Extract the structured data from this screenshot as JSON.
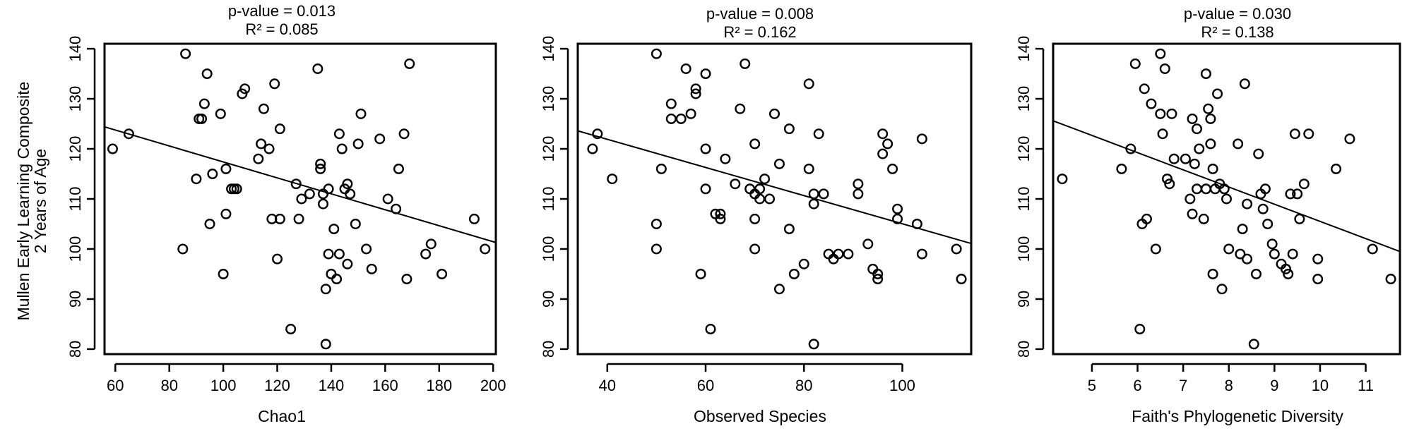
{
  "ylabel_line1": "Mullen Early Learning Composite",
  "ylabel_line2": "2 Years of Age",
  "chart_data": [
    {
      "type": "scatter",
      "title_line1": "p-value = 0.013",
      "title_line2": "R² = 0.085",
      "xlabel": "Chao1",
      "ylabel": "Mullen Early Learning Composite 2 Years of Age",
      "xlim": [
        56,
        201
      ],
      "ylim": [
        79,
        141
      ],
      "xticks": [
        60,
        80,
        100,
        120,
        140,
        160,
        180,
        200
      ],
      "yticks": [
        80,
        90,
        100,
        110,
        120,
        130,
        140
      ],
      "fit": {
        "x": [
          56,
          201
        ],
        "y": [
          124.4,
          101.3
        ]
      },
      "x": [
        59,
        65,
        85,
        86,
        90,
        91,
        92,
        93,
        94,
        95,
        96,
        99,
        100,
        101,
        101,
        103,
        104,
        105,
        107,
        108,
        113,
        114,
        115,
        117,
        118,
        119,
        120,
        121,
        121,
        125,
        127,
        128,
        129,
        132,
        135,
        136,
        136,
        137,
        137,
        138,
        138,
        139,
        139,
        140,
        141,
        142,
        143,
        143,
        144,
        145,
        146,
        146,
        147,
        149,
        150,
        151,
        153,
        155,
        158,
        161,
        164,
        165,
        167,
        168,
        169,
        175,
        177,
        181,
        193,
        197
      ],
      "y": [
        120,
        123,
        100,
        139,
        114,
        126,
        126,
        129,
        135,
        105,
        115,
        127,
        95,
        107,
        116,
        112,
        112,
        112,
        131,
        132,
        118,
        121,
        128,
        120,
        106,
        133,
        98,
        124,
        106,
        84,
        113,
        106,
        110,
        111,
        136,
        117,
        116,
        109,
        111,
        92,
        81,
        112,
        99,
        95,
        104,
        94,
        99,
        123,
        120,
        112,
        113,
        97,
        111,
        105,
        121,
        127,
        100,
        96,
        122,
        110,
        108,
        116,
        123,
        94,
        137,
        99,
        101,
        95,
        106,
        100
      ]
    },
    {
      "type": "scatter",
      "title_line1": "p-value = 0.008",
      "title_line2": "R² = 0.162",
      "xlabel": "Observed Species",
      "ylabel": "Mullen Early Learning Composite 2 Years of Age",
      "xlim": [
        34,
        114
      ],
      "ylim": [
        79,
        141
      ],
      "xticks": [
        40,
        60,
        80,
        100
      ],
      "yticks": [
        80,
        90,
        100,
        110,
        120,
        130,
        140
      ],
      "fit": {
        "x": [
          34,
          114
        ],
        "y": [
          123.6,
          101.1
        ]
      },
      "x": [
        37,
        38,
        41,
        50,
        50,
        50,
        51,
        53,
        53,
        55,
        56,
        57,
        58,
        58,
        59,
        60,
        60,
        60,
        61,
        62,
        63,
        63,
        64,
        66,
        67,
        68,
        69,
        70,
        70,
        70,
        70,
        71,
        71,
        72,
        73,
        74,
        75,
        75,
        77,
        77,
        78,
        80,
        81,
        81,
        82,
        82,
        82,
        83,
        84,
        85,
        86,
        87,
        89,
        91,
        91,
        93,
        94,
        95,
        95,
        96,
        96,
        97,
        98,
        99,
        99,
        103,
        104,
        104,
        111,
        112
      ],
      "y": [
        120,
        123,
        114,
        139,
        105,
        100,
        116,
        129,
        126,
        126,
        136,
        127,
        132,
        131,
        95,
        120,
        135,
        112,
        84,
        107,
        106,
        107,
        118,
        113,
        128,
        137,
        112,
        121,
        106,
        100,
        111,
        112,
        110,
        114,
        110,
        127,
        117,
        92,
        104,
        124,
        95,
        97,
        133,
        116,
        109,
        111,
        81,
        123,
        111,
        99,
        98,
        99,
        99,
        113,
        111,
        101,
        96,
        95,
        94,
        119,
        123,
        121,
        116,
        106,
        108,
        105,
        122,
        99,
        100,
        94
      ]
    },
    {
      "type": "scatter",
      "title_line1": "p-value = 0.030",
      "title_line2": "R² = 0.138",
      "xlabel": "Faith's Phylogenetic Diversity",
      "ylabel": "Mullen Early Learning Composite 2 Years of Age",
      "xlim": [
        4.15,
        11.75
      ],
      "ylim": [
        79,
        141
      ],
      "xticks": [
        5,
        6,
        7,
        8,
        9,
        10,
        11
      ],
      "yticks": [
        80,
        90,
        100,
        110,
        120,
        130,
        140
      ],
      "fit": {
        "x": [
          4.15,
          11.75
        ],
        "y": [
          125.6,
          99.5
        ]
      },
      "x": [
        4.35,
        5.65,
        5.85,
        5.95,
        6.05,
        6.1,
        6.15,
        6.2,
        6.3,
        6.4,
        6.5,
        6.5,
        6.55,
        6.6,
        6.65,
        6.7,
        6.75,
        6.8,
        7.05,
        7.15,
        7.2,
        7.2,
        7.25,
        7.3,
        7.3,
        7.35,
        7.45,
        7.5,
        7.5,
        7.55,
        7.6,
        7.6,
        7.65,
        7.65,
        7.7,
        7.75,
        7.8,
        7.85,
        7.9,
        7.95,
        8.0,
        8.2,
        8.25,
        8.3,
        8.35,
        8.4,
        8.4,
        8.55,
        8.6,
        8.65,
        8.7,
        8.75,
        8.8,
        8.85,
        8.95,
        9.0,
        9.15,
        9.25,
        9.3,
        9.35,
        9.4,
        9.45,
        9.5,
        9.55,
        9.65,
        9.75,
        9.95,
        9.95,
        10.35,
        10.65,
        11.15,
        11.55
      ],
      "y": [
        114,
        116,
        120,
        137,
        84,
        105,
        132,
        106,
        129,
        100,
        139,
        127,
        123,
        136,
        114,
        113,
        127,
        118,
        118,
        110,
        107,
        126,
        117,
        124,
        112,
        120,
        106,
        135,
        112,
        128,
        121,
        126,
        95,
        116,
        112,
        131,
        113,
        92,
        112,
        110,
        100,
        121,
        99,
        104,
        133,
        98,
        109,
        81,
        95,
        119,
        111,
        108,
        112,
        105,
        101,
        99,
        97,
        96,
        95,
        111,
        99,
        123,
        111,
        106,
        113,
        123,
        98,
        94,
        116,
        122,
        100,
        94
      ]
    }
  ]
}
